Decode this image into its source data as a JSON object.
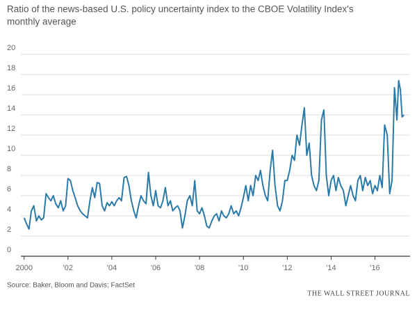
{
  "chart_data": {
    "type": "line",
    "title": "Ratio of the news-based U.S. policy uncertainty index to the CBOE Volatility Index's",
    "subtitle": "monthly average",
    "source": "Source: Baker, Bloom and Davis; FactSet",
    "credit": "THE WALL STREET JOURNAL",
    "color": "#2a7aa8",
    "grid": true,
    "xlim": [
      1999.85,
      2017.6
    ],
    "ylim": [
      0,
      20
    ],
    "yticks": [
      0,
      2,
      4,
      6,
      8,
      10,
      12,
      14,
      16,
      18,
      20
    ],
    "xticks": [
      2000,
      {
        "value": 2002,
        "label": "'02"
      },
      {
        "value": 2004,
        "label": "'04"
      },
      {
        "value": 2006,
        "label": "'06"
      },
      {
        "value": 2008,
        "label": "'08"
      },
      {
        "value": 2010,
        "label": "'10"
      },
      {
        "value": 2012,
        "label": "'12"
      },
      {
        "value": 2014,
        "label": "'14"
      },
      {
        "value": 2016,
        "label": "'16"
      }
    ],
    "x": [
      2000,
      2000.11,
      2000.22,
      2000.33,
      2000.44,
      2000.56,
      2000.67,
      2000.78,
      2000.89,
      2001,
      2001.11,
      2001.22,
      2001.33,
      2001.44,
      2001.56,
      2001.67,
      2001.78,
      2001.89,
      2002,
      2002.11,
      2002.22,
      2002.33,
      2002.44,
      2002.56,
      2002.67,
      2002.78,
      2002.89,
      2003,
      2003.11,
      2003.22,
      2003.33,
      2003.44,
      2003.56,
      2003.67,
      2003.78,
      2003.89,
      2004,
      2004.11,
      2004.22,
      2004.33,
      2004.44,
      2004.56,
      2004.67,
      2004.78,
      2004.89,
      2005,
      2005.11,
      2005.22,
      2005.33,
      2005.44,
      2005.56,
      2005.67,
      2005.78,
      2005.89,
      2006,
      2006.11,
      2006.22,
      2006.33,
      2006.44,
      2006.56,
      2006.67,
      2006.78,
      2006.89,
      2007,
      2007.11,
      2007.22,
      2007.33,
      2007.44,
      2007.56,
      2007.67,
      2007.78,
      2007.89,
      2008,
      2008.11,
      2008.22,
      2008.33,
      2008.44,
      2008.56,
      2008.67,
      2008.78,
      2008.89,
      2009,
      2009.11,
      2009.22,
      2009.33,
      2009.44,
      2009.56,
      2009.67,
      2009.78,
      2009.89,
      2010,
      2010.11,
      2010.22,
      2010.33,
      2010.44,
      2010.56,
      2010.67,
      2010.78,
      2010.89,
      2011,
      2011.11,
      2011.22,
      2011.33,
      2011.44,
      2011.56,
      2011.67,
      2011.78,
      2011.89,
      2012,
      2012.11,
      2012.22,
      2012.33,
      2012.44,
      2012.56,
      2012.67,
      2012.78,
      2012.89,
      2013,
      2013.11,
      2013.22,
      2013.33,
      2013.44,
      2013.56,
      2013.67,
      2013.78,
      2013.89,
      2014,
      2014.11,
      2014.22,
      2014.33,
      2014.44,
      2014.56,
      2014.67,
      2014.78,
      2014.89,
      2015,
      2015.11,
      2015.22,
      2015.33,
      2015.44,
      2015.56,
      2015.67,
      2015.78,
      2015.89,
      2016,
      2016.11,
      2016.22,
      2016.33,
      2016.44,
      2016.56,
      2016.67,
      2016.78,
      2016.89,
      2017,
      2017.08,
      2017.16,
      2017.24,
      2017.32
    ],
    "values": [
      3.8,
      3.2,
      2.7,
      4.5,
      5.0,
      3.5,
      4.0,
      3.6,
      3.8,
      6.2,
      5.8,
      5.5,
      6.0,
      5.2,
      4.8,
      5.5,
      4.5,
      5.0,
      7.7,
      7.5,
      6.5,
      5.8,
      5.0,
      4.5,
      4.2,
      4.0,
      3.8,
      5.5,
      6.8,
      5.8,
      7.3,
      7.2,
      5.0,
      4.5,
      5.3,
      5.0,
      5.4,
      5.0,
      5.5,
      5.8,
      5.5,
      7.8,
      7.9,
      7.0,
      5.5,
      4.5,
      3.8,
      5.0,
      6.0,
      5.5,
      5.2,
      8.3,
      6.0,
      5.0,
      6.5,
      5.0,
      4.8,
      5.5,
      6.8,
      5.0,
      5.5,
      4.5,
      4.8,
      5.0,
      4.5,
      2.8,
      4.0,
      5.5,
      6.0,
      5.0,
      7.5,
      4.5,
      4.2,
      4.8,
      4.0,
      3.0,
      2.8,
      3.5,
      4.0,
      4.2,
      3.5,
      4.5,
      4.0,
      3.8,
      4.2,
      5.0,
      4.2,
      4.5,
      4.0,
      4.8,
      5.8,
      7.0,
      5.5,
      7.0,
      6.0,
      8.0,
      7.5,
      8.5,
      7.0,
      6.0,
      5.5,
      8.5,
      10.5,
      7.0,
      5.0,
      4.5,
      5.5,
      7.5,
      7.5,
      8.5,
      10.0,
      9.5,
      12.0,
      11.0,
      13.0,
      14.7,
      10.0,
      11.2,
      8.0,
      7.0,
      6.5,
      7.5,
      13.5,
      14.5,
      8.0,
      6.0,
      7.5,
      8.0,
      6.5,
      7.8,
      7.0,
      6.5,
      5.0,
      6.0,
      7.0,
      6.0,
      5.5,
      7.5,
      8.0,
      6.5,
      7.8,
      7.0,
      7.5,
      6.2,
      7.0,
      6.5,
      8.0,
      6.8,
      13.0,
      12.0,
      6.2,
      7.5,
      16.7,
      13.5,
      17.4,
      16.5,
      13.8,
      14.0
    ]
  }
}
